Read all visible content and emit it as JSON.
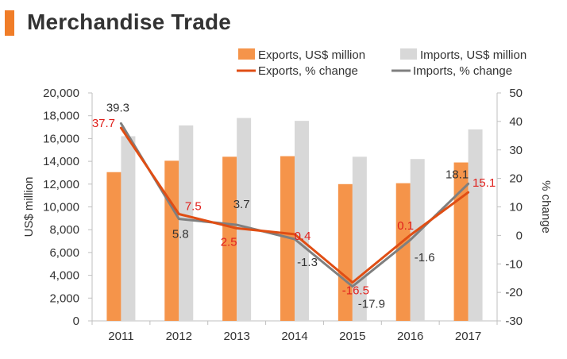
{
  "header": {
    "title": "Merchandise Trade"
  },
  "colors": {
    "exports_bar": "#f5944a",
    "imports_bar": "#d8d8d8",
    "exports_line": "#e04e14",
    "imports_line": "#7f7f7f",
    "exports_label": "#e0201c",
    "imports_label": "#333333",
    "accent": "#f07d28"
  },
  "chart_data": {
    "type": "bar",
    "categories": [
      "2011",
      "2012",
      "2013",
      "2014",
      "2015",
      "2016",
      "2017"
    ],
    "ylabel": "US$ million",
    "ylabel_right": "% change",
    "ylim": [
      0,
      20000
    ],
    "ylim_right": [
      -30,
      50
    ],
    "yticks_left": [
      "0",
      "2,000",
      "4,000",
      "6,000",
      "8,000",
      "10,000",
      "12,000",
      "14,000",
      "16,000",
      "18,000",
      "20,000"
    ],
    "yticks_right": [
      "-30",
      "-20",
      "-10",
      "0",
      "10",
      "20",
      "30",
      "40",
      "50"
    ],
    "legend_position": "top-right",
    "series": [
      {
        "name": "Exports, US$ million",
        "kind": "bar",
        "axis": "left",
        "values": [
          13050,
          14050,
          14400,
          14450,
          12000,
          12080,
          13900
        ]
      },
      {
        "name": "Imports, US$ million",
        "kind": "bar",
        "axis": "left",
        "values": [
          16200,
          17150,
          17800,
          17550,
          14400,
          14200,
          16800
        ]
      },
      {
        "name": "Exports, % change",
        "kind": "line",
        "axis": "right",
        "values": [
          37.7,
          7.5,
          2.5,
          0.4,
          -16.5,
          0.1,
          15.1
        ],
        "labels": [
          "37.7",
          "7.5",
          "2.5",
          "0.4",
          "-16.5",
          "0.1",
          "15.1"
        ]
      },
      {
        "name": "Imports, % change",
        "kind": "line",
        "axis": "right",
        "values": [
          39.3,
          5.8,
          3.7,
          -1.3,
          -17.9,
          -1.6,
          18.1
        ],
        "labels": [
          "39.3",
          "5.8",
          "3.7",
          "-1.3",
          "-17.9",
          "-1.6",
          "18.1"
        ]
      }
    ]
  }
}
